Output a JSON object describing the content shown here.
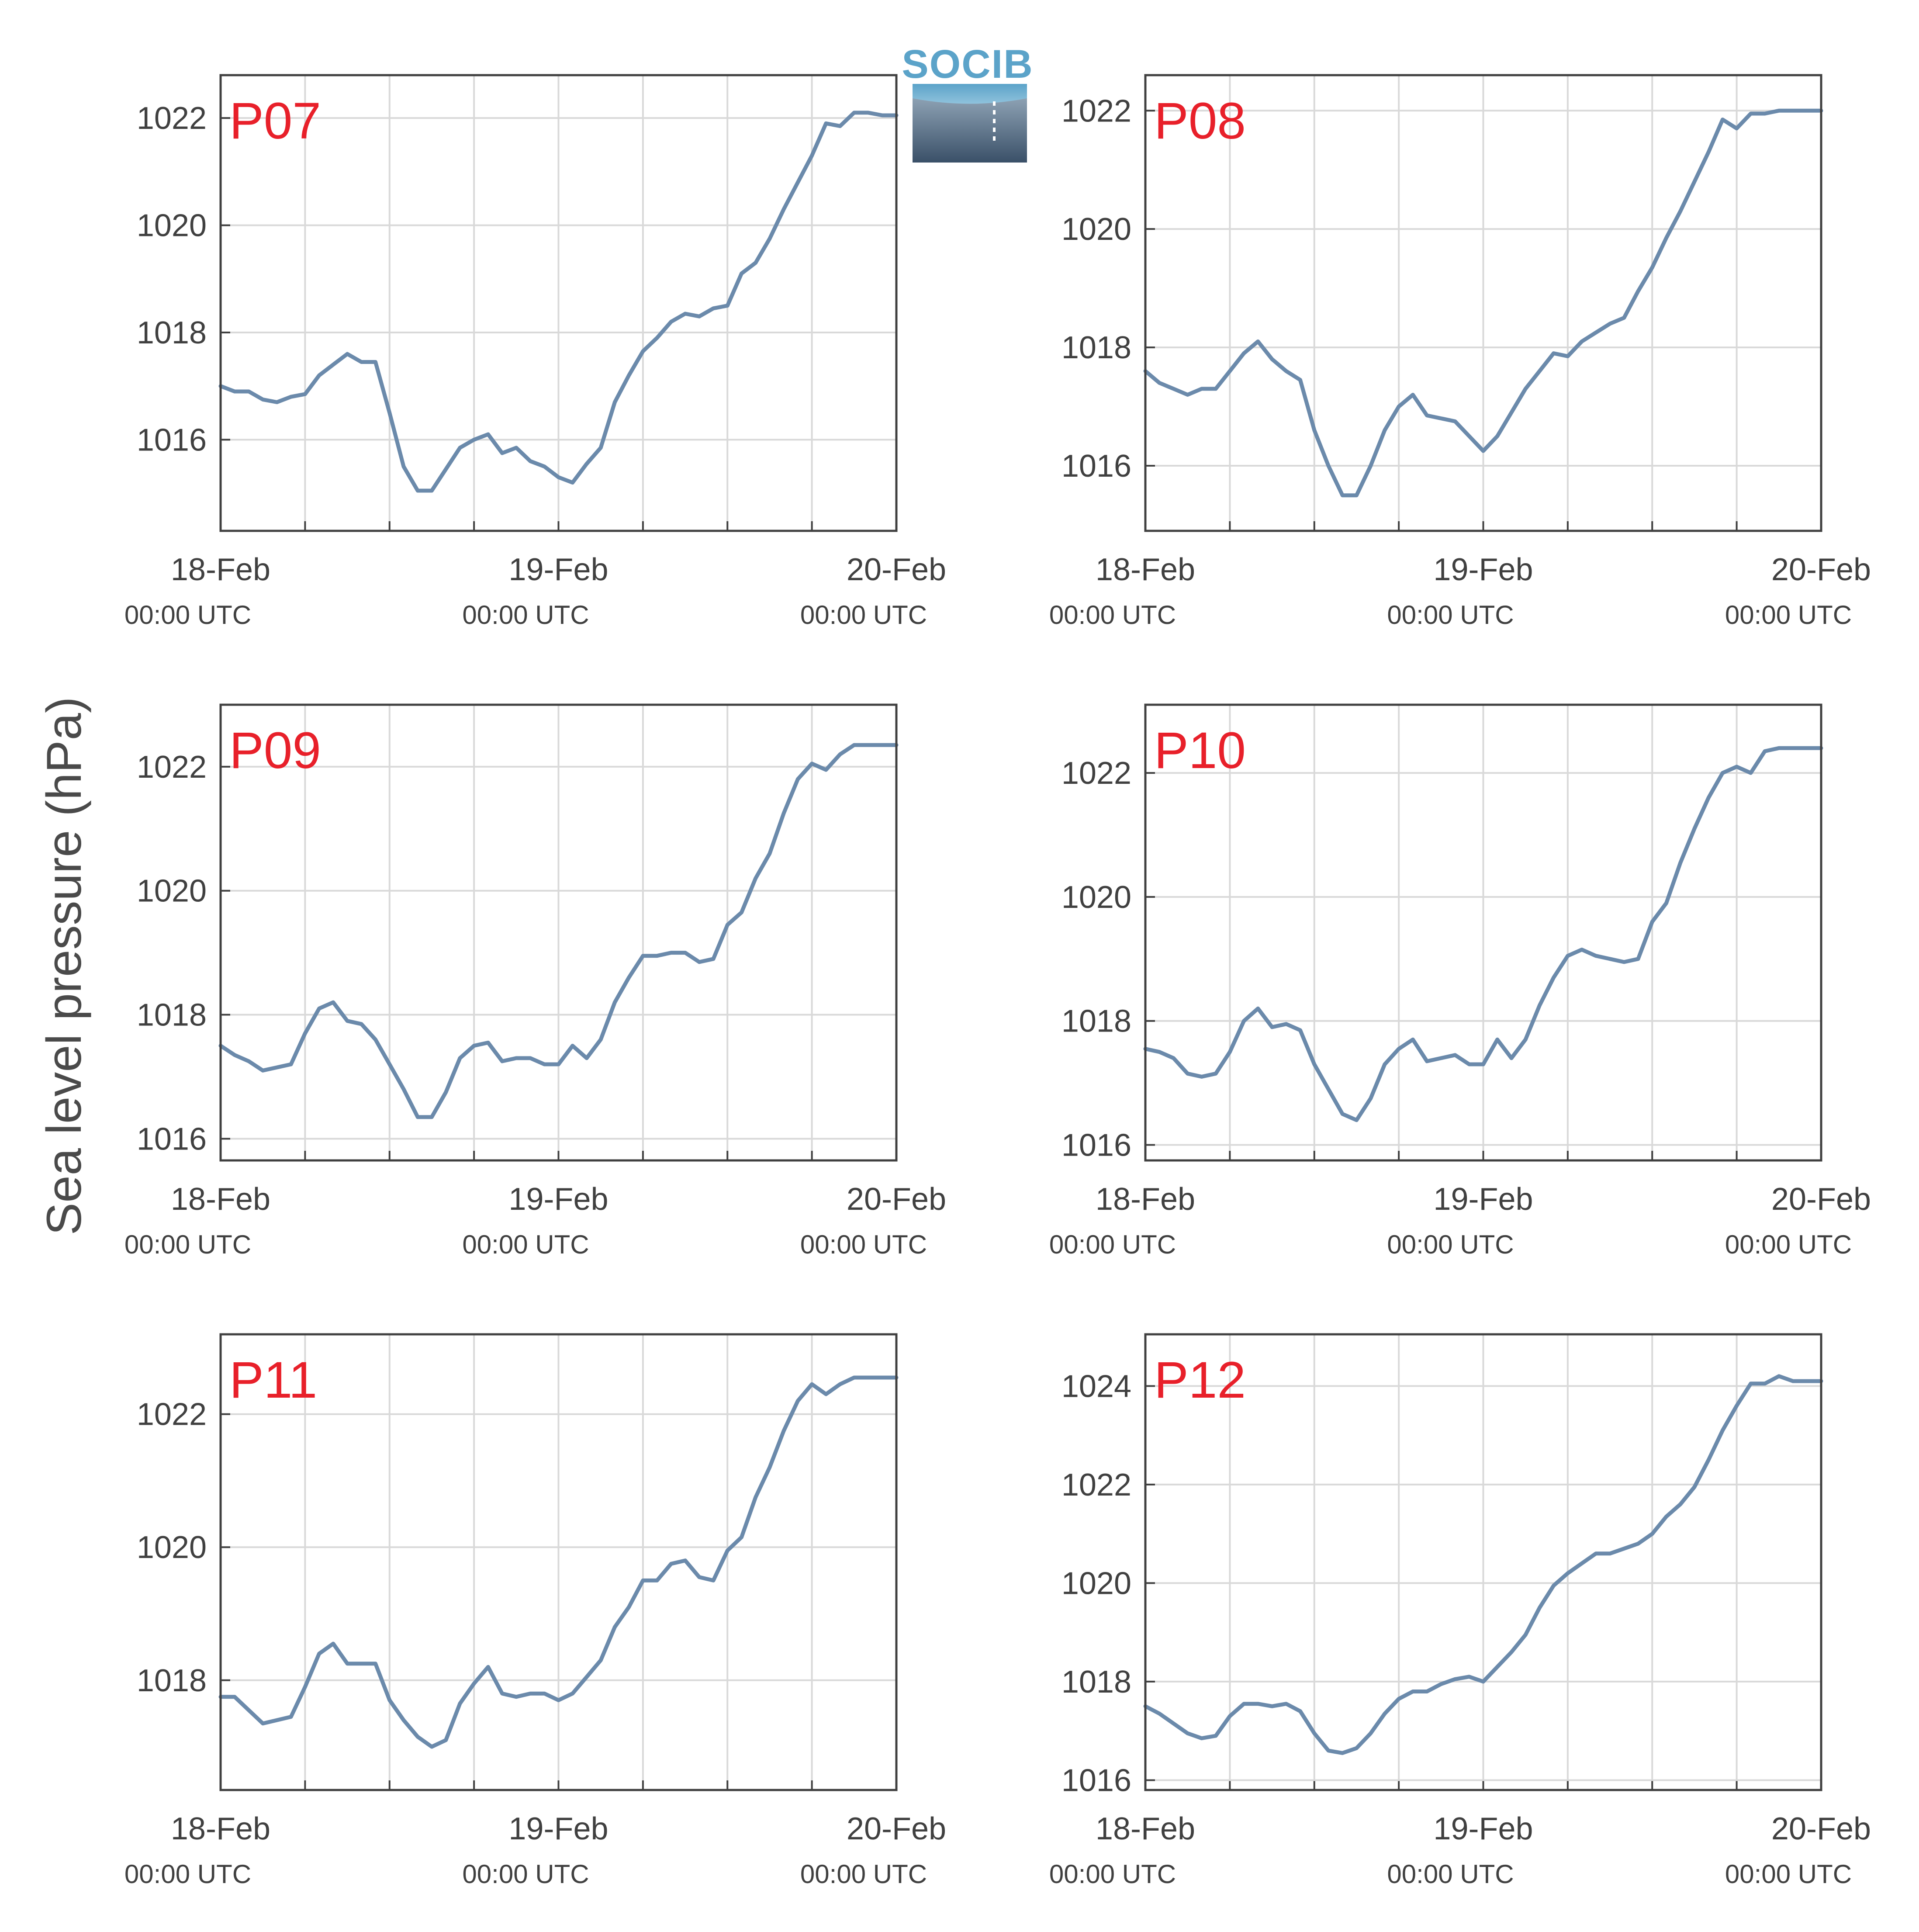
{
  "figure": {
    "ylabel": "Sea level pressure (hPa)",
    "logo_text": "SOCIB",
    "colors": {
      "line": "#6b8aab",
      "grid": "#d9d9d9",
      "frame": "#404040",
      "station_label": "#e8202a"
    }
  },
  "chart_data": [
    {
      "type": "line",
      "station": "P07",
      "ylim": [
        1014.3,
        1022.8
      ],
      "yticks": [
        1016,
        1018,
        1020,
        1022
      ],
      "xticks": [
        {
          "date": "18-Feb",
          "time": "00:00 UTC"
        },
        {
          "date": "19-Feb",
          "time": "00:00 UTC"
        },
        {
          "date": "20-Feb",
          "time": "00:00 UTC"
        }
      ],
      "x_hours": [
        0,
        1,
        2,
        3,
        4,
        5,
        6,
        7,
        8,
        9,
        10,
        11,
        12,
        13,
        14,
        15,
        16,
        17,
        18,
        19,
        20,
        21,
        22,
        23,
        24,
        25,
        26,
        27,
        28,
        29,
        30,
        31,
        32,
        33,
        34,
        35,
        36,
        37,
        38,
        39,
        40,
        41,
        42,
        43,
        44,
        45,
        46,
        47,
        48
      ],
      "values": [
        1017.0,
        1016.9,
        1016.9,
        1016.75,
        1016.7,
        1016.8,
        1016.85,
        1017.2,
        1017.4,
        1017.6,
        1017.45,
        1017.45,
        1016.5,
        1015.5,
        1015.05,
        1015.05,
        1015.45,
        1015.85,
        1016.0,
        1016.1,
        1015.75,
        1015.85,
        1015.6,
        1015.5,
        1015.3,
        1015.2,
        1015.55,
        1015.85,
        1016.7,
        1017.2,
        1017.65,
        1017.9,
        1018.2,
        1018.35,
        1018.3,
        1018.45,
        1018.5,
        1019.1,
        1019.3,
        1019.75,
        1020.3,
        1020.8,
        1021.3,
        1021.9,
        1021.85,
        1022.1,
        1022.1,
        1022.05,
        1022.05
      ]
    },
    {
      "type": "line",
      "station": "P08",
      "ylim": [
        1014.9,
        1022.6
      ],
      "yticks": [
        1016,
        1018,
        1020,
        1022
      ],
      "xticks": [
        {
          "date": "18-Feb",
          "time": "00:00 UTC"
        },
        {
          "date": "19-Feb",
          "time": "00:00 UTC"
        },
        {
          "date": "20-Feb",
          "time": "00:00 UTC"
        }
      ],
      "x_hours": [
        0,
        1,
        2,
        3,
        4,
        5,
        6,
        7,
        8,
        9,
        10,
        11,
        12,
        13,
        14,
        15,
        16,
        17,
        18,
        19,
        20,
        21,
        22,
        23,
        24,
        25,
        26,
        27,
        28,
        29,
        30,
        31,
        32,
        33,
        34,
        35,
        36,
        37,
        38,
        39,
        40,
        41,
        42,
        43,
        44,
        45,
        46,
        47,
        48
      ],
      "values": [
        1017.6,
        1017.4,
        1017.3,
        1017.2,
        1017.3,
        1017.3,
        1017.6,
        1017.9,
        1018.1,
        1017.8,
        1017.6,
        1017.45,
        1016.6,
        1016.0,
        1015.5,
        1015.5,
        1016.0,
        1016.6,
        1017.0,
        1017.2,
        1016.85,
        1016.8,
        1016.75,
        1016.5,
        1016.25,
        1016.5,
        1016.9,
        1017.3,
        1017.6,
        1017.9,
        1017.85,
        1018.1,
        1018.25,
        1018.4,
        1018.5,
        1018.95,
        1019.35,
        1019.85,
        1020.3,
        1020.8,
        1021.3,
        1021.85,
        1021.7,
        1021.95,
        1021.95,
        1022.0,
        1022.0,
        1022.0,
        1022.0
      ]
    },
    {
      "type": "line",
      "station": "P09",
      "ylim": [
        1015.65,
        1023.0
      ],
      "yticks": [
        1016,
        1018,
        1020,
        1022
      ],
      "xticks": [
        {
          "date": "18-Feb",
          "time": "00:00 UTC"
        },
        {
          "date": "19-Feb",
          "time": "00:00 UTC"
        },
        {
          "date": "20-Feb",
          "time": "00:00 UTC"
        }
      ],
      "x_hours": [
        0,
        1,
        2,
        3,
        4,
        5,
        6,
        7,
        8,
        9,
        10,
        11,
        12,
        13,
        14,
        15,
        16,
        17,
        18,
        19,
        20,
        21,
        22,
        23,
        24,
        25,
        26,
        27,
        28,
        29,
        30,
        31,
        32,
        33,
        34,
        35,
        36,
        37,
        38,
        39,
        40,
        41,
        42,
        43,
        44,
        45,
        46,
        47,
        48
      ],
      "values": [
        1017.5,
        1017.35,
        1017.25,
        1017.1,
        1017.15,
        1017.2,
        1017.7,
        1018.1,
        1018.2,
        1017.9,
        1017.85,
        1017.6,
        1017.2,
        1016.8,
        1016.35,
        1016.35,
        1016.75,
        1017.3,
        1017.5,
        1017.55,
        1017.25,
        1017.3,
        1017.3,
        1017.2,
        1017.2,
        1017.5,
        1017.3,
        1017.6,
        1018.2,
        1018.6,
        1018.95,
        1018.95,
        1019.0,
        1019.0,
        1018.85,
        1018.9,
        1019.45,
        1019.65,
        1020.2,
        1020.6,
        1021.25,
        1021.8,
        1022.05,
        1021.95,
        1022.2,
        1022.35,
        1022.35,
        1022.35,
        1022.35
      ]
    },
    {
      "type": "line",
      "station": "P10",
      "ylim": [
        1015.75,
        1023.1
      ],
      "yticks": [
        1016,
        1018,
        1020,
        1022
      ],
      "xticks": [
        {
          "date": "18-Feb",
          "time": "00:00 UTC"
        },
        {
          "date": "19-Feb",
          "time": "00:00 UTC"
        },
        {
          "date": "20-Feb",
          "time": "00:00 UTC"
        }
      ],
      "x_hours": [
        0,
        1,
        2,
        3,
        4,
        5,
        6,
        7,
        8,
        9,
        10,
        11,
        12,
        13,
        14,
        15,
        16,
        17,
        18,
        19,
        20,
        21,
        22,
        23,
        24,
        25,
        26,
        27,
        28,
        29,
        30,
        31,
        32,
        33,
        34,
        35,
        36,
        37,
        38,
        39,
        40,
        41,
        42,
        43,
        44,
        45,
        46,
        47,
        48
      ],
      "values": [
        1017.55,
        1017.5,
        1017.4,
        1017.15,
        1017.1,
        1017.15,
        1017.5,
        1018.0,
        1018.2,
        1017.9,
        1017.95,
        1017.85,
        1017.3,
        1016.9,
        1016.5,
        1016.4,
        1016.75,
        1017.3,
        1017.55,
        1017.7,
        1017.35,
        1017.4,
        1017.45,
        1017.3,
        1017.3,
        1017.7,
        1017.4,
        1017.7,
        1018.25,
        1018.7,
        1019.05,
        1019.15,
        1019.05,
        1019.0,
        1018.95,
        1019.0,
        1019.6,
        1019.9,
        1020.55,
        1021.1,
        1021.6,
        1022.0,
        1022.1,
        1022.0,
        1022.35,
        1022.4,
        1022.4,
        1022.4,
        1022.4
      ]
    },
    {
      "type": "line",
      "station": "P11",
      "ylim": [
        1016.35,
        1023.2
      ],
      "yticks": [
        1018,
        1020,
        1022
      ],
      "xticks": [
        {
          "date": "18-Feb",
          "time": "00:00 UTC"
        },
        {
          "date": "19-Feb",
          "time": "00:00 UTC"
        },
        {
          "date": "20-Feb",
          "time": "00:00 UTC"
        }
      ],
      "x_hours": [
        0,
        1,
        2,
        3,
        4,
        5,
        6,
        7,
        8,
        9,
        10,
        11,
        12,
        13,
        14,
        15,
        16,
        17,
        18,
        19,
        20,
        21,
        22,
        23,
        24,
        25,
        26,
        27,
        28,
        29,
        30,
        31,
        32,
        33,
        34,
        35,
        36,
        37,
        38,
        39,
        40,
        41,
        42,
        43,
        44,
        45,
        46,
        47,
        48
      ],
      "values": [
        1017.75,
        1017.75,
        1017.55,
        1017.35,
        1017.4,
        1017.45,
        1017.9,
        1018.4,
        1018.55,
        1018.25,
        1018.25,
        1018.25,
        1017.7,
        1017.4,
        1017.15,
        1017.0,
        1017.1,
        1017.65,
        1017.95,
        1018.2,
        1017.8,
        1017.75,
        1017.8,
        1017.8,
        1017.7,
        1017.8,
        1018.05,
        1018.3,
        1018.8,
        1019.1,
        1019.5,
        1019.5,
        1019.75,
        1019.8,
        1019.55,
        1019.5,
        1019.95,
        1020.15,
        1020.75,
        1021.2,
        1021.75,
        1022.2,
        1022.45,
        1022.3,
        1022.45,
        1022.55,
        1022.55,
        1022.55,
        1022.55
      ]
    },
    {
      "type": "line",
      "station": "P12",
      "ylim": [
        1015.8,
        1025.05
      ],
      "yticks": [
        1016,
        1018,
        1020,
        1022,
        1024
      ],
      "xticks": [
        {
          "date": "18-Feb",
          "time": "00:00 UTC"
        },
        {
          "date": "19-Feb",
          "time": "00:00 UTC"
        },
        {
          "date": "20-Feb",
          "time": "00:00 UTC"
        }
      ],
      "x_hours": [
        0,
        1,
        2,
        3,
        4,
        5,
        6,
        7,
        8,
        9,
        10,
        11,
        12,
        13,
        14,
        15,
        16,
        17,
        18,
        19,
        20,
        21,
        22,
        23,
        24,
        25,
        26,
        27,
        28,
        29,
        30,
        31,
        32,
        33,
        34,
        35,
        36,
        37,
        38,
        39,
        40,
        41,
        42,
        43,
        44,
        45,
        46,
        47,
        48
      ],
      "values": [
        1017.5,
        1017.35,
        1017.15,
        1016.95,
        1016.85,
        1016.9,
        1017.3,
        1017.55,
        1017.55,
        1017.5,
        1017.55,
        1017.4,
        1016.95,
        1016.6,
        1016.55,
        1016.65,
        1016.95,
        1017.35,
        1017.65,
        1017.8,
        1017.8,
        1017.95,
        1018.05,
        1018.1,
        1018.0,
        1018.3,
        1018.6,
        1018.95,
        1019.5,
        1019.95,
        1020.2,
        1020.4,
        1020.6,
        1020.6,
        1020.7,
        1020.8,
        1021.0,
        1021.35,
        1021.6,
        1021.95,
        1022.5,
        1023.1,
        1023.6,
        1024.05,
        1024.05,
        1024.2,
        1024.1,
        1024.1,
        1024.1
      ]
    }
  ]
}
